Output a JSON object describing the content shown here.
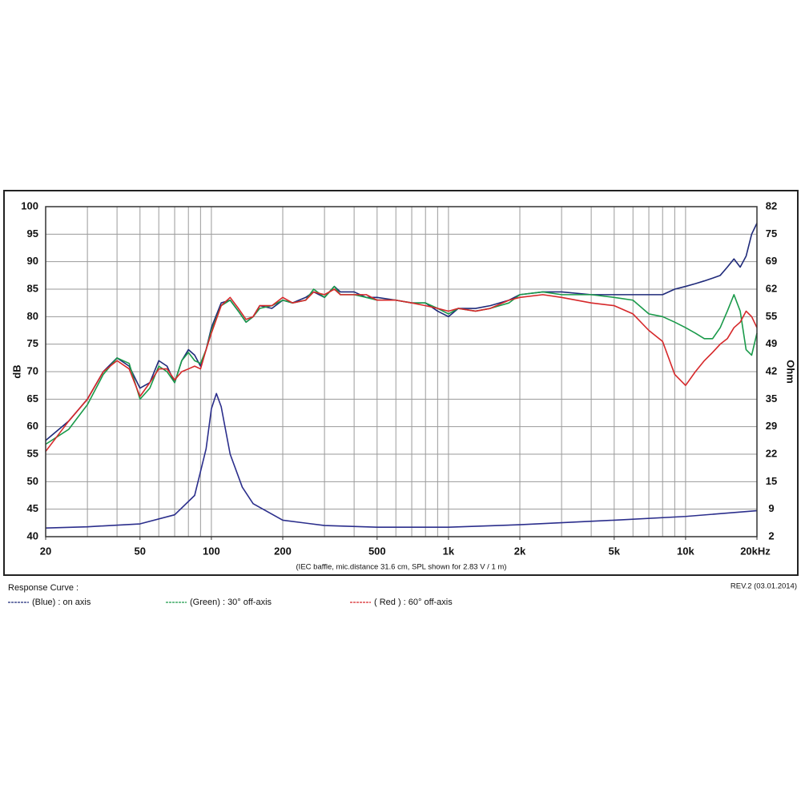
{
  "chart_data": {
    "type": "line",
    "ylabel": "dB",
    "y2label": "Ohm",
    "note": "(IEC baffle, mic.distance 31.6 cm, SPL shown for 2.83 V / 1 m)",
    "legend_title": "Response Curve :",
    "revision": "REV.2 (03.01.2014)",
    "xscale": "log",
    "grid": true,
    "xlim": [
      20,
      20000
    ],
    "xticks": [
      20,
      50,
      100,
      200,
      500,
      {
        "value": 1000,
        "label": "1k"
      },
      {
        "value": 2000,
        "label": "2k"
      },
      {
        "value": 5000,
        "label": "5k"
      },
      {
        "value": 10000,
        "label": "10k"
      },
      {
        "value": 20000,
        "label": "20kHz"
      }
    ],
    "xgrid": [
      30,
      40,
      50,
      60,
      70,
      80,
      90,
      100,
      200,
      300,
      400,
      500,
      600,
      700,
      800,
      900,
      1000,
      2000,
      3000,
      4000,
      5000,
      6000,
      7000,
      8000,
      9000,
      10000
    ],
    "ylim": [
      40,
      100
    ],
    "yticks": [
      40,
      45,
      50,
      55,
      60,
      65,
      70,
      75,
      80,
      85,
      90,
      95,
      100
    ],
    "y2lim": [
      2,
      82
    ],
    "y2ticks": [
      2,
      {
        "value": 8.667,
        "label": "9"
      },
      {
        "value": 15.333,
        "label": "15"
      },
      22,
      {
        "value": 28.667,
        "label": "29"
      },
      {
        "value": 35.333,
        "label": "35"
      },
      42,
      {
        "value": 48.667,
        "label": "49"
      },
      {
        "value": 55.333,
        "label": "55"
      },
      62,
      {
        "value": 68.667,
        "label": "69"
      },
      {
        "value": 75.333,
        "label": "75"
      },
      82
    ],
    "x": [
      20,
      25,
      30,
      35,
      40,
      45,
      50,
      55,
      60,
      65,
      70,
      75,
      80,
      85,
      90,
      95,
      100,
      110,
      120,
      130,
      140,
      150,
      160,
      180,
      200,
      220,
      250,
      270,
      300,
      330,
      350,
      400,
      450,
      500,
      600,
      700,
      800,
      900,
      1000,
      1100,
      1300,
      1500,
      1800,
      2000,
      2500,
      3000,
      4000,
      5000,
      6000,
      7000,
      8000,
      9000,
      10000,
      11000,
      12000,
      13000,
      14000,
      15000,
      16000,
      17000,
      18000,
      19000,
      20000
    ],
    "series": [
      {
        "name": "(Blue)  : on axis",
        "color": "#1f2a7a",
        "values": [
          57.5,
          61,
          65,
          70,
          72.5,
          71,
          67,
          68,
          72,
          71,
          68,
          72,
          74,
          73,
          71,
          74,
          78,
          82.5,
          83,
          81,
          79,
          80,
          82,
          81.5,
          83,
          82.5,
          83.5,
          84.5,
          83.5,
          85.5,
          84.5,
          84.5,
          83.5,
          83.5,
          83,
          82.5,
          82.5,
          81,
          80,
          81.5,
          81.5,
          82,
          83,
          84,
          84.5,
          84.5,
          84,
          84,
          84,
          84,
          84,
          85,
          85.5,
          86,
          86.5,
          87,
          87.5,
          89,
          90.5,
          89,
          91,
          95,
          97
        ]
      },
      {
        "name": "(Green) : 30° off-axis",
        "color": "#1a9a4a",
        "values": [
          56.8,
          59.5,
          64,
          69.5,
          72.5,
          71.5,
          65,
          67,
          71,
          70,
          68,
          72,
          73.5,
          72,
          71.5,
          74,
          77.5,
          82,
          83,
          81,
          79,
          80,
          81.5,
          82,
          83,
          82.5,
          83,
          85,
          83.5,
          85.5,
          84,
          84,
          83.5,
          83,
          83,
          82.5,
          82.5,
          81.5,
          80.5,
          81.5,
          81,
          81.5,
          82.5,
          84,
          84.5,
          84,
          84,
          83.5,
          83,
          80.5,
          80,
          79,
          78,
          77,
          76,
          76,
          78,
          81,
          84,
          81,
          74,
          73,
          77
        ]
      },
      {
        "name": "( Red ) : 60° off-axis",
        "color": "#d6282a",
        "values": [
          55.5,
          61,
          65,
          70,
          72,
          70.5,
          65.5,
          68,
          70.5,
          70.5,
          68.5,
          70,
          70.5,
          71,
          70.5,
          74,
          77,
          82,
          83.5,
          81.5,
          79.5,
          80,
          82,
          82,
          83.5,
          82.5,
          83,
          84.5,
          84,
          85,
          84,
          84,
          84,
          83,
          83,
          82.5,
          82,
          81.5,
          81,
          81.5,
          81,
          81.5,
          83,
          83.5,
          84,
          83.5,
          82.5,
          82,
          80.5,
          77.5,
          75.5,
          69.5,
          67.5,
          70,
          72,
          73.5,
          75,
          76,
          78,
          79,
          81,
          80,
          78
        ]
      },
      {
        "color": "#2b2e8c",
        "axis": "y2",
        "x": [
          20,
          30,
          50,
          70,
          85,
          95,
          100,
          105,
          110,
          120,
          135,
          150,
          200,
          300,
          500,
          1000,
          2000,
          5000,
          10000,
          20000
        ],
        "values": [
          4.1,
          4.4,
          5.1,
          7.3,
          12,
          23.3,
          33,
          36.7,
          33.5,
          22,
          14,
          10,
          6,
          4.7,
          4.3,
          4.3,
          4.9,
          6,
          6.9,
          8.3
        ]
      }
    ]
  }
}
